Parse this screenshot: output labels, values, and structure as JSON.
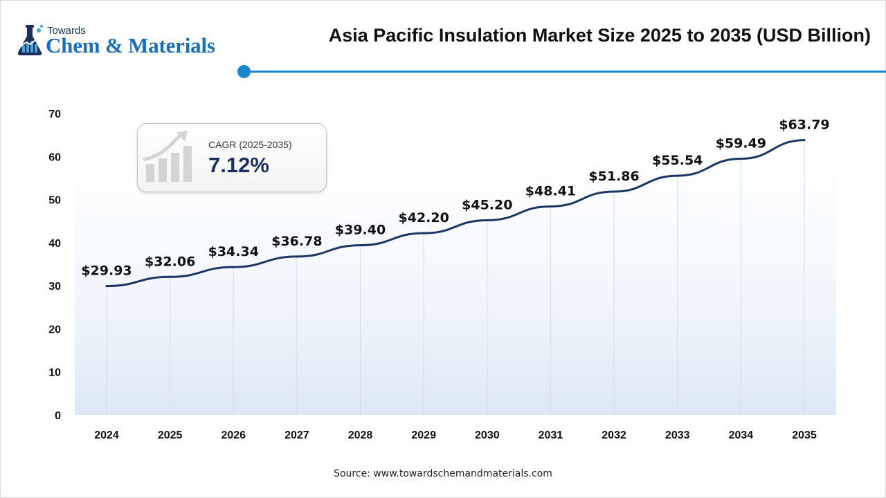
{
  "header": {
    "logo_small": "Towards",
    "logo_big": "Chem & Materials",
    "title": "Asia Pacific Insulation Market Size 2025 to 2035 (USD Billion)"
  },
  "cagr": {
    "label": "CAGR (2025-2035)",
    "value": "7.12%"
  },
  "footer": {
    "source": "Source: www.towardschemandmaterials.com"
  },
  "colors": {
    "line": "#1b3564",
    "accent": "#1a86cc",
    "area_top": "#ffffff",
    "area_bottom": "#dce8f6"
  },
  "chart_data": {
    "type": "line",
    "title": "Asia Pacific Insulation Market Size 2025 to 2035 (USD Billion)",
    "categories": [
      "2024",
      "2025",
      "2026",
      "2027",
      "2028",
      "2029",
      "2030",
      "2031",
      "2032",
      "2033",
      "2034",
      "2035"
    ],
    "values": [
      29.93,
      32.06,
      34.34,
      36.78,
      39.4,
      42.2,
      45.2,
      48.41,
      51.86,
      55.54,
      59.49,
      63.79
    ],
    "value_labels": [
      "$29.93",
      "$32.06",
      "$34.34",
      "$36.78",
      "$39.40",
      "$42.20",
      "$45.20",
      "$48.41",
      "$51.86",
      "$55.54",
      "$59.49",
      "$63.79"
    ],
    "ylim": [
      0,
      70
    ],
    "yticks": [
      0,
      10,
      20,
      30,
      40,
      50,
      60,
      70
    ],
    "grid": "vertical",
    "legend": "none"
  }
}
